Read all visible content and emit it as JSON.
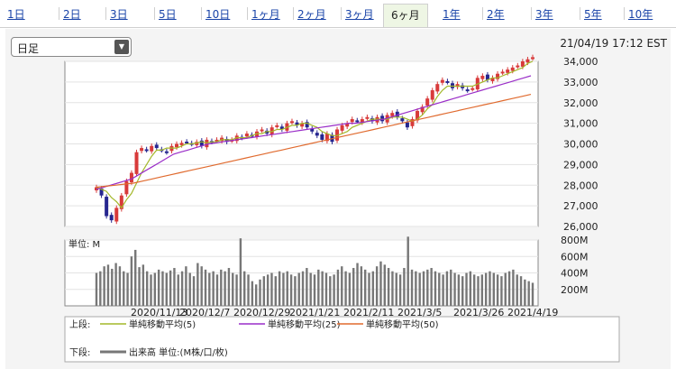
{
  "periods": [
    "1日",
    "2日",
    "3日",
    "5日",
    "10日",
    "1ヶ月",
    "2ヶ月",
    "3ヶ月",
    "6ヶ月",
    "1年",
    "2年",
    "3年",
    "5年",
    "10年"
  ],
  "active_period": "6ヶ月",
  "interval_select": "日足",
  "timestamp": "21/04/19 17:12 EST",
  "volume_unit_label": "単位: M",
  "legend": {
    "upper_label": "上段:",
    "lower_label": "下段:",
    "ma5": "単純移動平均(5)",
    "ma25": "単純移動平均(25)",
    "ma50": "単純移動平均(50)",
    "volume": "出来高 単位:(M株/口/枚)"
  },
  "colors": {
    "up": "#d83a3a",
    "down": "#26268f",
    "ma5": "#a3b82a",
    "ma25": "#9a2ec8",
    "ma50": "#e06a2e",
    "vol": "#777777",
    "link": "#1a44a8"
  },
  "chart_data": {
    "type": "candlestick",
    "x": [
      "2020/11/13",
      "2020/12/7",
      "2020/12/29",
      "2021/1/21",
      "2021/2/11",
      "2021/3/5",
      "2021/3/26",
      "2021/4/19"
    ],
    "price_ylim": [
      26000,
      34000
    ],
    "price_ticks": [
      "34,000",
      "33,000",
      "32,000",
      "31,000",
      "30,000",
      "29,000",
      "28,000",
      "27,000",
      "26,000"
    ],
    "volume_ylim": [
      0,
      800
    ],
    "volume_ticks": [
      "800M",
      "600M",
      "400M",
      "200M"
    ],
    "close_approx": [
      27900,
      27500,
      26500,
      26300,
      26900,
      27500,
      28200,
      28600,
      29600,
      29800,
      29700,
      29900,
      29800,
      29700,
      29600,
      29900,
      30000,
      30050,
      30100,
      30000,
      30100,
      29900,
      30200,
      30100,
      30200,
      30300,
      30100,
      30200,
      30400,
      30300,
      30500,
      30400,
      30600,
      30700,
      30500,
      30800,
      30900,
      30700,
      31000,
      31100,
      30900,
      31000,
      30800,
      30600,
      30400,
      30200,
      30500,
      30100,
      30700,
      30900,
      31000,
      31200,
      31100,
      31200,
      31300,
      31100,
      31300,
      31100,
      31400,
      31500,
      31300,
      31100,
      30800,
      31200,
      31600,
      31800,
      32200,
      32600,
      32900,
      33100,
      33000,
      32700,
      32900,
      32700,
      32600,
      32700,
      33200,
      33300,
      33100,
      33200,
      33400,
      33500,
      33600,
      33700,
      33800,
      34000,
      34100,
      34200
    ],
    "ma5_approx": [
      27900,
      27800,
      27700,
      27400,
      27200,
      26900,
      27300,
      27600,
      28100,
      28600,
      29000,
      29400,
      29700,
      29700,
      29800,
      29800,
      29800,
      29900,
      30000,
      30000,
      30050,
      30100,
      30050,
      30100,
      30100,
      30200,
      30200,
      30200,
      30300,
      30300,
      30300,
      30400,
      30500,
      30500,
      30600,
      30600,
      30700,
      30700,
      30800,
      30900,
      30900,
      31000,
      31000,
      30900,
      30800,
      30600,
      30500,
      30400,
      30400,
      30500,
      30600,
      30800,
      30900,
      31000,
      31100,
      31200,
      31200,
      31200,
      31200,
      31300,
      31300,
      31300,
      31200,
      31100,
      31200,
      31400,
      31700,
      31900,
      32300,
      32600,
      32800,
      32800,
      32800,
      32800,
      32800,
      32800,
      32900,
      33000,
      33100,
      33200,
      33200,
      33300,
      33400,
      33500,
      33600,
      33700,
      33900,
      34000
    ],
    "ma25_approx": [
      27800,
      27900,
      28000,
      28100,
      28200,
      28300,
      28500,
      28700,
      28900,
      29100,
      29300,
      29500,
      29600,
      29700,
      29800,
      29900,
      30000,
      30050,
      30100,
      30150,
      30200,
      30250,
      30300,
      30350,
      30400,
      30450,
      30500,
      30550,
      30600,
      30650,
      30700,
      30750,
      30800,
      30850,
      30900,
      30950,
      31000,
      31000,
      31050,
      31100,
      31150,
      31200,
      31300,
      31400,
      31500,
      31600,
      31700,
      31800,
      31900,
      32000,
      32100,
      32200,
      32300,
      32400,
      32500,
      32600,
      32700,
      32800,
      32900,
      33000,
      33100,
      33200,
      33300
    ],
    "ma50_approx": [
      27900,
      27950,
      28000,
      28050,
      28100,
      28200,
      28300,
      28400,
      28500,
      28600,
      28700,
      28800,
      28900,
      29000,
      29100,
      29200,
      29300,
      29400,
      29500,
      29600,
      29700,
      29800,
      29900,
      30000,
      30100,
      30200,
      30300,
      30400,
      30500,
      30600,
      30700,
      30800,
      30900,
      31000,
      31100,
      31200,
      31300,
      31400,
      31500,
      31600,
      31700,
      31800,
      31900,
      32000,
      32100,
      32200,
      32300,
      32400
    ],
    "volume_approx": [
      400,
      420,
      480,
      500,
      450,
      520,
      480,
      420,
      400,
      600,
      680,
      470,
      500,
      420,
      380,
      400,
      440,
      420,
      400,
      430,
      460,
      380,
      420,
      480,
      400,
      360,
      520,
      480,
      440,
      400,
      420,
      380,
      440,
      420,
      460,
      400,
      380,
      820,
      420,
      380,
      300,
      260,
      320,
      360,
      380,
      400,
      360,
      420,
      400,
      420,
      380,
      360,
      400,
      420,
      460,
      400,
      380,
      440,
      420,
      400,
      360,
      380,
      440,
      480,
      420,
      400,
      460,
      520,
      480,
      440,
      400,
      420,
      480,
      540,
      500,
      460,
      420,
      400,
      380,
      460,
      840,
      440,
      420,
      400,
      420,
      440,
      460,
      420,
      400,
      380,
      420,
      440,
      400,
      380,
      360,
      400,
      420,
      380,
      360,
      380,
      400,
      420,
      400,
      380,
      360,
      400,
      420,
      440,
      380,
      360,
      320,
      300,
      280
    ]
  }
}
